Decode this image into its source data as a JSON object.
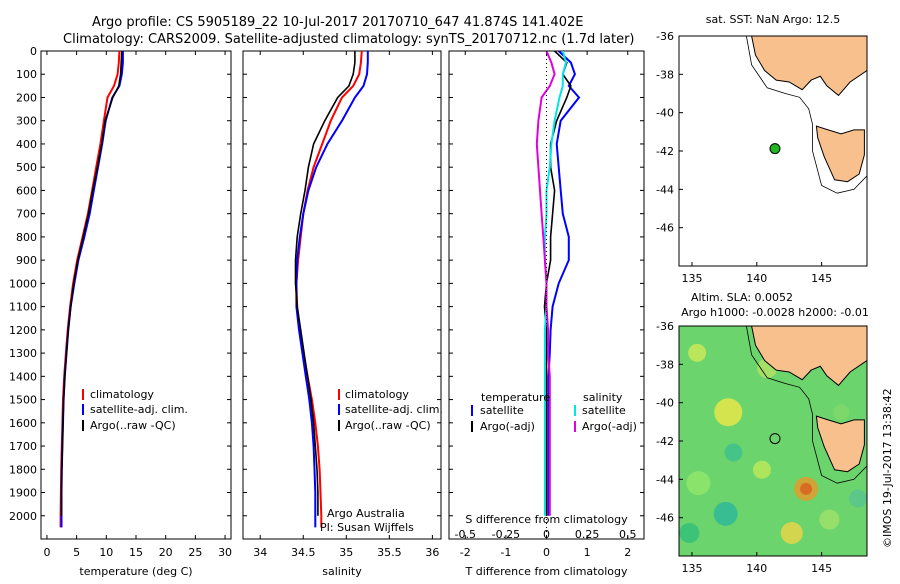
{
  "header": {
    "line1": "Argo profile: CS 5905189_22 10-Jul-2017 20170710_647 41.874S 141.402E",
    "line2": "Climatology: CARS2009. Satellite-adjusted climatology: synTS_20170712.nc (1.7d later)"
  },
  "colors": {
    "climatology": "#ff0000",
    "satellite": "#0000ff",
    "argo": "#000000",
    "s_satellite": "#00e5e5",
    "s_argo": "#e000e0",
    "land": "#f7c08c",
    "float_marker": "#22b522"
  },
  "chart_data": [
    {
      "type": "line",
      "id": "temperature-profile",
      "xlabel": "temperature (deg C)",
      "ylabel": "",
      "xlim": [
        -1,
        31
      ],
      "ylim": [
        2100,
        0
      ],
      "xticks": [
        0,
        5,
        10,
        15,
        20,
        25,
        30
      ],
      "yticks": [
        0,
        100,
        200,
        300,
        400,
        500,
        600,
        700,
        800,
        900,
        1000,
        1100,
        1200,
        1300,
        1400,
        1500,
        1600,
        1700,
        1800,
        1900,
        2000
      ],
      "legend": [
        "climatology",
        "satellite-adj. clim.",
        "Argo(..raw -QC)"
      ],
      "series": [
        {
          "name": "climatology",
          "x": [
            12.2,
            12.1,
            11.9,
            11.3,
            10.2,
            9.6,
            9.0,
            8.3,
            7.6,
            6.9,
            6.0,
            5.1,
            4.4,
            3.9,
            3.5,
            3.2,
            2.9,
            2.7,
            2.6,
            2.5,
            2.4,
            2.35,
            2.3,
            2.3
          ],
          "y": [
            0,
            50,
            100,
            150,
            200,
            300,
            400,
            500,
            600,
            700,
            800,
            900,
            1000,
            1100,
            1200,
            1300,
            1400,
            1500,
            1600,
            1700,
            1800,
            1900,
            2000,
            2050
          ]
        },
        {
          "name": "satellite-adj. clim.",
          "x": [
            12.8,
            12.8,
            12.6,
            12.2,
            11.0,
            9.9,
            9.3,
            8.6,
            7.9,
            7.2,
            6.3,
            5.3,
            4.6,
            4.0,
            3.6,
            3.3,
            3.0,
            2.8,
            2.7,
            2.6,
            2.5,
            2.45,
            2.45,
            2.45
          ],
          "y": [
            0,
            50,
            100,
            150,
            200,
            300,
            400,
            500,
            600,
            700,
            800,
            900,
            1000,
            1100,
            1200,
            1300,
            1400,
            1500,
            1600,
            1700,
            1800,
            1900,
            2000,
            2050
          ]
        },
        {
          "name": "Argo(..raw -QC)",
          "x": [
            12.6,
            12.5,
            12.4,
            12.1,
            11.1,
            9.8,
            9.2,
            8.5,
            7.7,
            7.0,
            6.1,
            5.2,
            4.5,
            4.0,
            3.6,
            3.3,
            3.0,
            2.8,
            2.7,
            2.6,
            2.5,
            2.45,
            2.45
          ],
          "y": [
            0,
            50,
            100,
            150,
            200,
            300,
            400,
            500,
            600,
            700,
            800,
            900,
            1000,
            1100,
            1200,
            1300,
            1400,
            1500,
            1600,
            1700,
            1800,
            1900,
            2000
          ]
        }
      ]
    },
    {
      "type": "line",
      "id": "salinity-profile",
      "xlabel": "salinity",
      "xlim": [
        33.8,
        36.1
      ],
      "ylim": [
        2100,
        0
      ],
      "xticks": [
        34,
        34.5,
        35,
        35.5,
        36
      ],
      "legend": [
        "climatology",
        "satellite-adj. clim.",
        "Argo(..raw -QC)"
      ],
      "annotations": [
        "Argo Australia",
        "PI: Susan Wijffels"
      ],
      "series": [
        {
          "name": "climatology",
          "x": [
            35.18,
            35.17,
            35.15,
            35.08,
            34.95,
            34.82,
            34.72,
            34.62,
            34.55,
            34.5,
            34.47,
            34.44,
            34.42,
            34.43,
            34.46,
            34.5,
            34.55,
            34.6,
            34.64,
            34.67,
            34.69,
            34.7,
            34.71,
            34.71
          ],
          "y": [
            0,
            50,
            100,
            150,
            200,
            300,
            400,
            500,
            600,
            700,
            800,
            900,
            1000,
            1100,
            1200,
            1300,
            1400,
            1500,
            1600,
            1700,
            1800,
            1900,
            2000,
            2050
          ]
        },
        {
          "name": "satellite-adj. clim.",
          "x": [
            35.25,
            35.25,
            35.24,
            35.2,
            35.1,
            34.95,
            34.78,
            34.65,
            34.56,
            34.5,
            34.46,
            34.43,
            34.42,
            34.42,
            34.45,
            34.49,
            34.53,
            34.57,
            34.6,
            34.62,
            34.63,
            34.64,
            34.64,
            34.64
          ],
          "y": [
            0,
            50,
            100,
            150,
            200,
            300,
            400,
            500,
            600,
            700,
            800,
            900,
            1000,
            1100,
            1200,
            1300,
            1400,
            1500,
            1600,
            1700,
            1800,
            1900,
            2000,
            2050
          ]
        },
        {
          "name": "Argo(..raw -QC)",
          "x": [
            35.1,
            35.1,
            35.08,
            35.03,
            34.9,
            34.75,
            34.62,
            34.56,
            34.52,
            34.47,
            34.43,
            34.41,
            34.41,
            34.43,
            34.47,
            34.51,
            34.55,
            34.59,
            34.62,
            34.64,
            34.66,
            34.67,
            34.67
          ],
          "y": [
            0,
            50,
            100,
            150,
            200,
            300,
            400,
            500,
            600,
            700,
            800,
            900,
            1000,
            1100,
            1200,
            1300,
            1400,
            1500,
            1600,
            1700,
            1800,
            1900,
            2000
          ]
        }
      ]
    },
    {
      "type": "line",
      "id": "difference-profile",
      "xlabel": "T difference from climatology",
      "xlabel_top": "S difference from climatology",
      "xlim": [
        -2.4,
        2.4
      ],
      "ylim": [
        2100,
        0
      ],
      "xticks": [
        -2,
        -1,
        0,
        1,
        2
      ],
      "xticks_top": [
        -0.5,
        -0.25,
        0,
        0.25,
        0.5
      ],
      "legend_headers": [
        "temperature",
        "salinity"
      ],
      "legend_t": [
        "satellite",
        "Argo(-adj)"
      ],
      "legend_s": [
        "satellite",
        "Argo(-adj)"
      ],
      "series": [
        {
          "name": "temperature satellite",
          "x": [
            0.3,
            0.6,
            0.7,
            0.55,
            0.8,
            0.35,
            0.25,
            0.3,
            0.35,
            0.4,
            0.55,
            0.55,
            0.3,
            0.15,
            0.1,
            0.08,
            0.05,
            0.05,
            0.05,
            0.05,
            0.05,
            0.05,
            0.05
          ],
          "y": [
            0,
            50,
            100,
            150,
            200,
            300,
            400,
            500,
            600,
            700,
            800,
            900,
            1000,
            1100,
            1200,
            1300,
            1400,
            1500,
            1600,
            1700,
            1800,
            1900,
            2000
          ]
        },
        {
          "name": "temperature Argo(-adj)",
          "x": [
            0.2,
            0.5,
            0.4,
            0.6,
            0.5,
            0.25,
            0.1,
            0.1,
            0.2,
            0.15,
            0.1,
            0.1,
            0.0,
            -0.05,
            0.0,
            0.0,
            0.0,
            0.0,
            0.0,
            0.0,
            0.0,
            0.0,
            0.0
          ],
          "y": [
            0,
            50,
            100,
            150,
            200,
            300,
            400,
            500,
            600,
            700,
            800,
            900,
            1000,
            1100,
            1200,
            1300,
            1400,
            1500,
            1600,
            1700,
            1800,
            1900,
            2000
          ]
        },
        {
          "name": "salinity satellite",
          "x": [
            0.1,
            0.12,
            0.1,
            0.1,
            0.08,
            0.05,
            0.03,
            0.02,
            0.0,
            0.0,
            -0.01,
            -0.01,
            0.0,
            0.0,
            -0.01,
            -0.01,
            -0.01,
            -0.01,
            -0.01,
            -0.01,
            -0.01,
            -0.01,
            -0.01
          ],
          "y": [
            0,
            50,
            100,
            150,
            200,
            300,
            400,
            500,
            600,
            700,
            800,
            900,
            1000,
            1100,
            1200,
            1300,
            1400,
            1500,
            1600,
            1700,
            1800,
            1900,
            2000
          ]
        },
        {
          "name": "salinity Argo(-adj)",
          "x": [
            0.0,
            0.03,
            0.05,
            0.02,
            -0.03,
            -0.05,
            -0.06,
            -0.05,
            -0.04,
            -0.03,
            -0.02,
            -0.01,
            0.0,
            0.0,
            0.01,
            0.01,
            0.02,
            0.02,
            0.02,
            0.02,
            0.02,
            0.02,
            0.02
          ],
          "y": [
            0,
            50,
            100,
            150,
            200,
            300,
            400,
            500,
            600,
            700,
            800,
            900,
            1000,
            1100,
            1200,
            1300,
            1400,
            1500,
            1600,
            1700,
            1800,
            1900,
            2000
          ]
        }
      ]
    },
    {
      "type": "scatter",
      "id": "sst-map",
      "title": "sat. SST: NaN Argo: 12.5",
      "xlim": [
        134,
        148.5
      ],
      "ylim": [
        -48,
        -36
      ],
      "xticks": [
        135,
        140,
        145
      ],
      "yticks": [
        -36,
        -38,
        -40,
        -42,
        -44,
        -46
      ],
      "float_position": {
        "lon": 141.402,
        "lat": -41.874
      }
    },
    {
      "type": "heatmap",
      "id": "sla-map",
      "title1": "Altim. SLA: 0.0052",
      "title2": "Argo h1000: -0.0028 h2000: -0.01",
      "xlim": [
        134,
        148.5
      ],
      "ylim": [
        -48,
        -36
      ],
      "xticks": [
        135,
        140,
        145
      ],
      "yticks": [
        -36,
        -38,
        -40,
        -42,
        -44,
        -46
      ],
      "float_position": {
        "lon": 141.402,
        "lat": -41.874
      }
    }
  ],
  "footer": {
    "stamp": "©IMOS 19-Jul-2017 13:38:42"
  }
}
